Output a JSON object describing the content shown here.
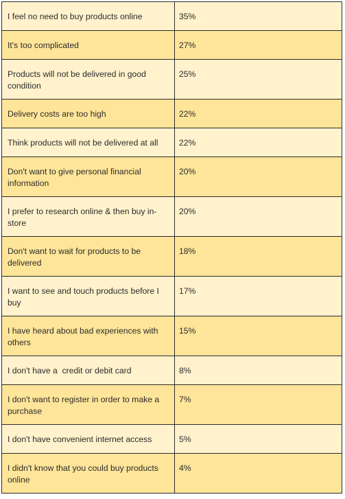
{
  "rows": [
    {
      "reason": "I feel no need to buy products online",
      "pct": "35%"
    },
    {
      "reason": "It's too complicated",
      "pct": "27%"
    },
    {
      "reason": "Products will not be delivered in good condition",
      "pct": "25%"
    },
    {
      "reason": "Delivery costs are too high",
      "pct": "22%"
    },
    {
      "reason": "Think products will not be delivered at all",
      "pct": "22%"
    },
    {
      "reason": "Don't want to give personal financial information",
      "pct": "20%"
    },
    {
      "reason": "I prefer to research online & then buy in-store",
      "pct": "20%"
    },
    {
      "reason": "Don't want to wait for products to be delivered",
      "pct": "18%"
    },
    {
      "reason": "I want to see and touch products before I buy",
      "pct": "17%"
    },
    {
      "reason": "I have heard about bad experiences with others",
      "pct": "15%"
    },
    {
      "reason": "I don't have a  credit or debit card",
      "pct": "8%"
    },
    {
      "reason": "I don't want to register in order to make a purchase",
      "pct": "7%"
    },
    {
      "reason": "I don't have convenient internet access",
      "pct": "5%"
    },
    {
      "reason": "I didn't know that you could buy products online",
      "pct": "4%"
    }
  ],
  "colors": {
    "light_row": "#fff2cc",
    "dark_row": "#ffe599",
    "border": "#2b2b2b",
    "text": "#2b2b2b"
  }
}
